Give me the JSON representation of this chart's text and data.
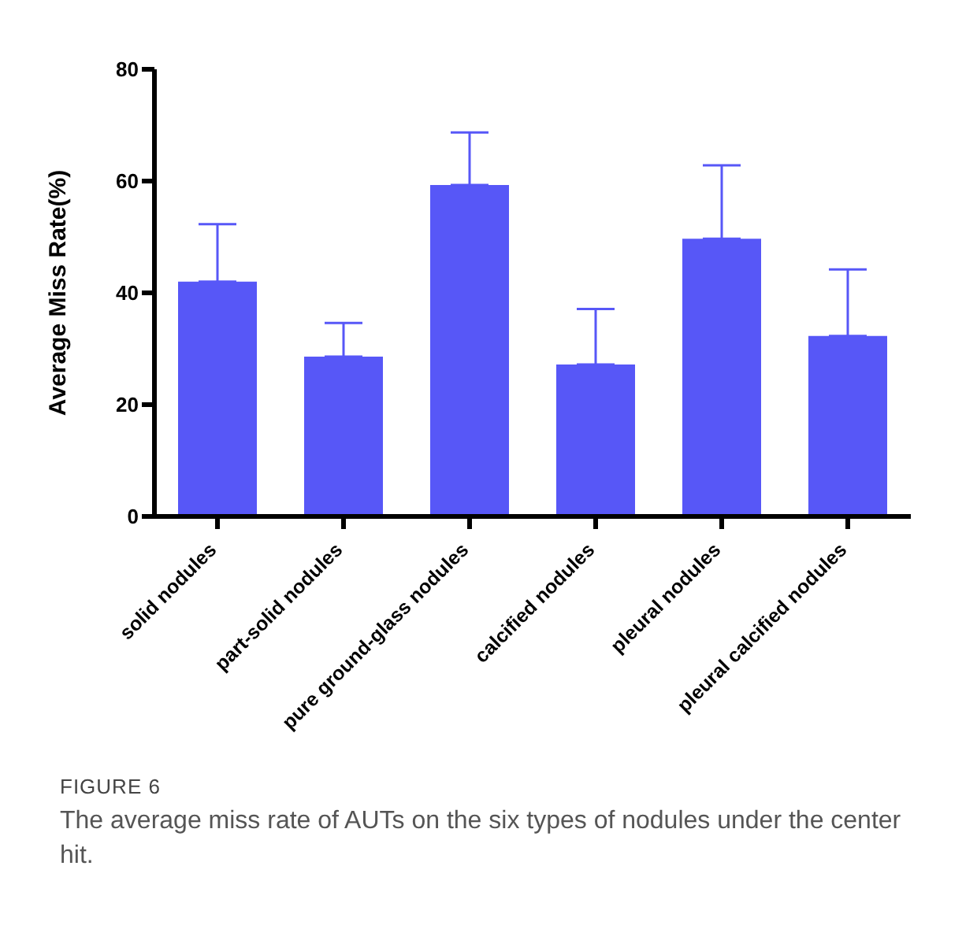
{
  "chart_data": {
    "type": "bar",
    "ylabel": "Average Miss Rate(%)",
    "categories": [
      "solid nodules",
      "part-solid nodules",
      "pure ground-glass nodules",
      "calcified nodules",
      "pleural nodules",
      "pleural calcified nodules"
    ],
    "values": [
      42.0,
      28.6,
      59.3,
      27.2,
      49.7,
      32.3
    ],
    "errors": [
      [
        42.0,
        52.3
      ],
      [
        28.6,
        34.6
      ],
      [
        59.3,
        68.7
      ],
      [
        27.2,
        37.1
      ],
      [
        49.7,
        62.8
      ],
      [
        32.3,
        44.2
      ]
    ],
    "color": "#5757f7",
    "ylim": [
      0,
      80
    ],
    "yticks": [
      0,
      20,
      40,
      60,
      80
    ],
    "grid": false,
    "annotations": [
      "FIGURE 6",
      "The average miss rate of AUTs on the six types of nodules under the center hit."
    ]
  }
}
